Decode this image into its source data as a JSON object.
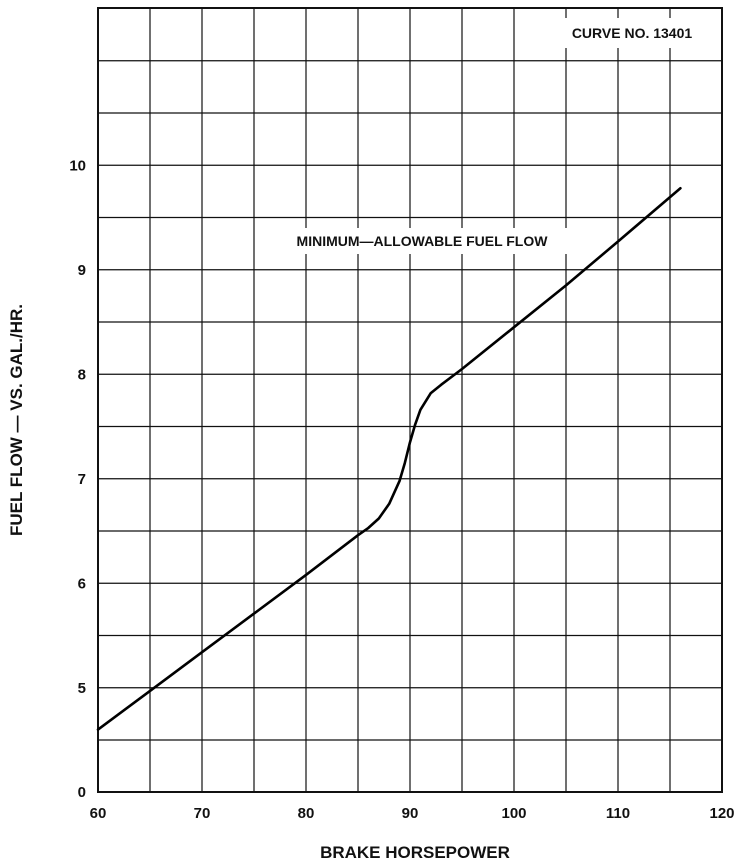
{
  "chart_data": {
    "type": "line",
    "title": "",
    "xlabel": "BRAKE HORSEPOWER",
    "ylabel": "FUEL FLOW — VS. GAL./HR.",
    "annotations": [
      "CURVE NO. 13401"
    ],
    "xlim": [
      60,
      120
    ],
    "x_ticks": [
      60,
      70,
      80,
      90,
      100,
      110,
      120
    ],
    "y_ticks": [
      {
        "value": 0,
        "label": "0"
      },
      {
        "value": 5,
        "label": "5"
      },
      {
        "value": 6,
        "label": "6"
      },
      {
        "value": 7,
        "label": "7"
      },
      {
        "value": 8,
        "label": "8"
      },
      {
        "value": 9,
        "label": "9"
      },
      {
        "value": 10,
        "label": "10"
      }
    ],
    "grid": true,
    "series": [
      {
        "name": "MINIMUM—ALLOWABLE FUEL FLOW",
        "x": [
          60,
          65,
          70,
          75,
          80,
          85,
          86,
          87,
          88,
          89,
          89.5,
          90,
          90.5,
          91,
          92,
          93,
          95,
          100,
          105,
          110,
          116
        ],
        "y": [
          4.6,
          4.97,
          5.34,
          5.71,
          6.08,
          6.46,
          6.53,
          6.62,
          6.76,
          6.98,
          7.15,
          7.35,
          7.52,
          7.66,
          7.82,
          7.9,
          8.05,
          8.45,
          8.85,
          9.27,
          9.78
        ]
      }
    ]
  }
}
